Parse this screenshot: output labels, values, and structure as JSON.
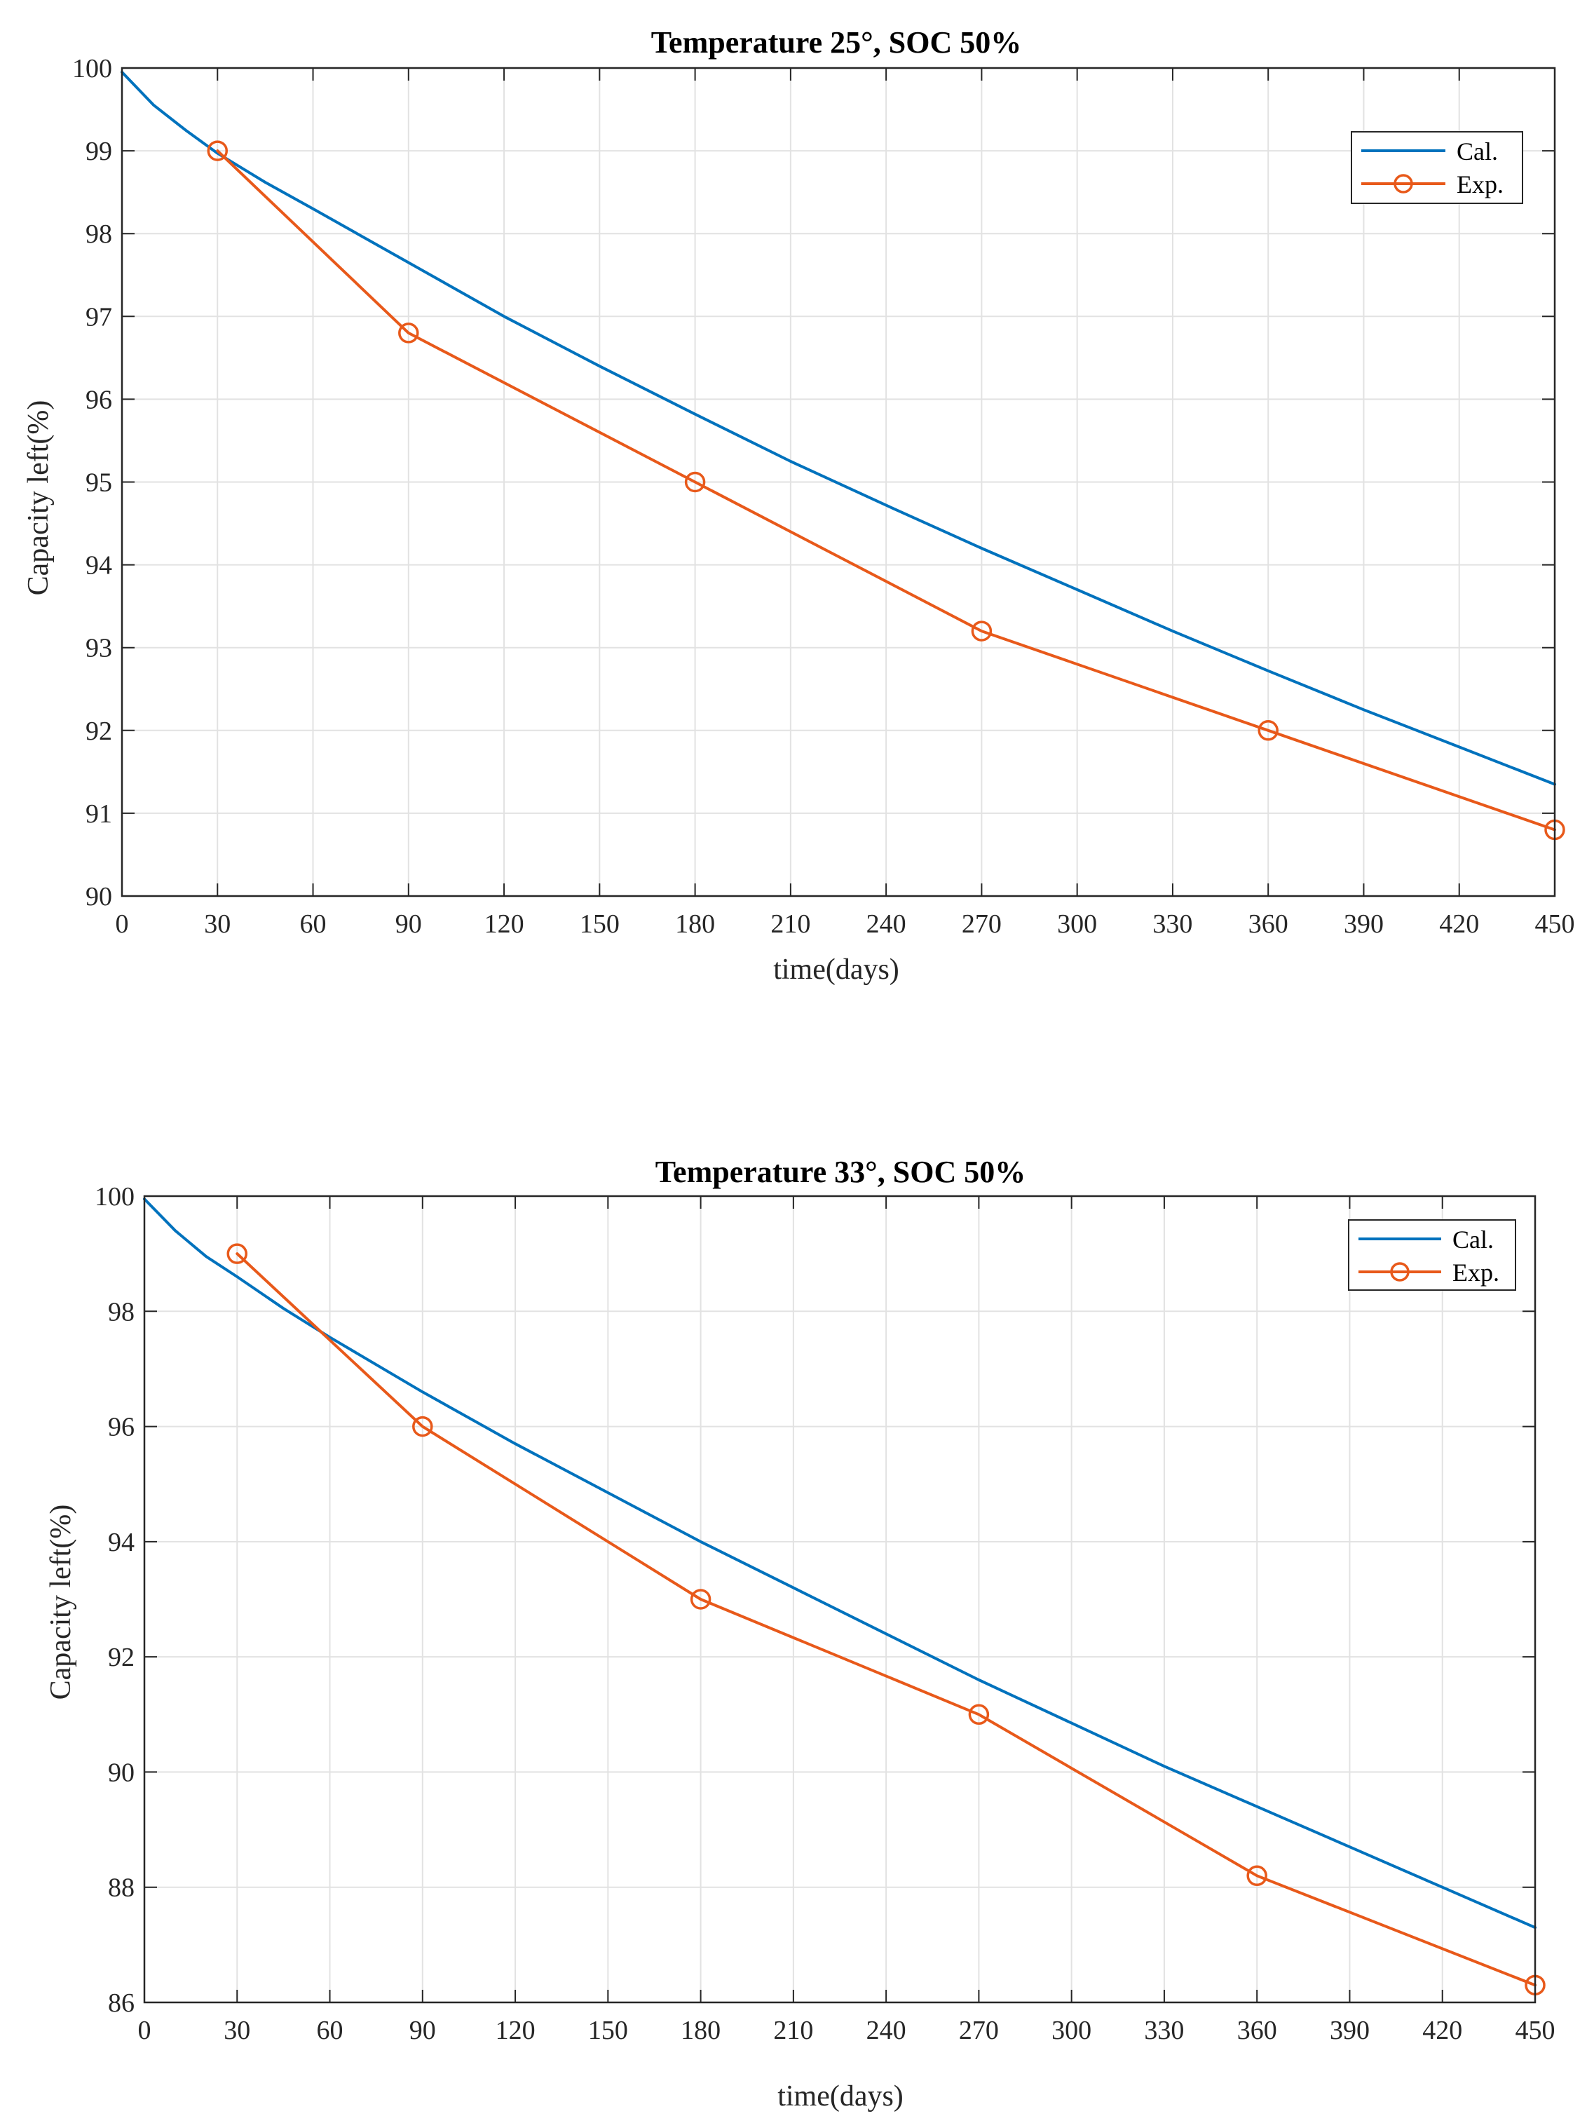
{
  "chart_data": [
    {
      "type": "line",
      "title": "Temperature 25°, SOC 50%",
      "xlabel": "time(days)",
      "ylabel": "Capacity left(%)",
      "xlim": [
        0,
        450
      ],
      "ylim": [
        90,
        100
      ],
      "xticks": [
        0,
        30,
        60,
        90,
        120,
        150,
        180,
        210,
        240,
        270,
        300,
        330,
        360,
        390,
        420,
        450
      ],
      "yticks": [
        90,
        91,
        92,
        93,
        94,
        95,
        96,
        97,
        98,
        99,
        100
      ],
      "grid": true,
      "legend_position": "top-right",
      "series": [
        {
          "name": "Cal.",
          "color": "#0072BD",
          "marker": "none",
          "x": [
            0,
            10,
            20,
            30,
            45,
            60,
            90,
            120,
            150,
            180,
            210,
            240,
            270,
            300,
            330,
            360,
            390,
            420,
            450
          ],
          "y": [
            99.95,
            99.55,
            99.25,
            98.97,
            98.62,
            98.3,
            97.65,
            97.0,
            96.4,
            95.82,
            95.25,
            94.72,
            94.2,
            93.7,
            93.2,
            92.72,
            92.25,
            91.8,
            91.35
          ]
        },
        {
          "name": "Exp.",
          "color": "#E8591A",
          "marker": "circle",
          "x": [
            30,
            90,
            180,
            270,
            360,
            450
          ],
          "y": [
            99.0,
            96.8,
            95.0,
            93.2,
            92.0,
            90.8
          ]
        }
      ]
    },
    {
      "type": "line",
      "title": "Temperature 33°, SOC 50%",
      "xlabel": "time(days)",
      "ylabel": "Capacity left(%)",
      "xlim": [
        0,
        450
      ],
      "ylim": [
        86,
        100
      ],
      "xticks": [
        0,
        30,
        60,
        90,
        120,
        150,
        180,
        210,
        240,
        270,
        300,
        330,
        360,
        390,
        420,
        450
      ],
      "yticks": [
        86,
        88,
        90,
        92,
        94,
        96,
        98,
        100
      ],
      "grid": true,
      "legend_position": "top-right",
      "series": [
        {
          "name": "Cal.",
          "color": "#0072BD",
          "marker": "none",
          "x": [
            0,
            10,
            20,
            30,
            45,
            60,
            90,
            120,
            150,
            180,
            210,
            240,
            270,
            300,
            330,
            360,
            390,
            420,
            450
          ],
          "y": [
            99.95,
            99.4,
            98.95,
            98.6,
            98.05,
            97.55,
            96.6,
            95.7,
            94.85,
            94.0,
            93.2,
            92.4,
            91.6,
            90.85,
            90.1,
            89.4,
            88.7,
            88.0,
            87.3
          ]
        },
        {
          "name": "Exp.",
          "color": "#E8591A",
          "marker": "circle",
          "x": [
            30,
            90,
            180,
            270,
            360,
            450
          ],
          "y": [
            99.0,
            96.0,
            93.0,
            91.0,
            88.2,
            86.3
          ]
        }
      ]
    }
  ]
}
